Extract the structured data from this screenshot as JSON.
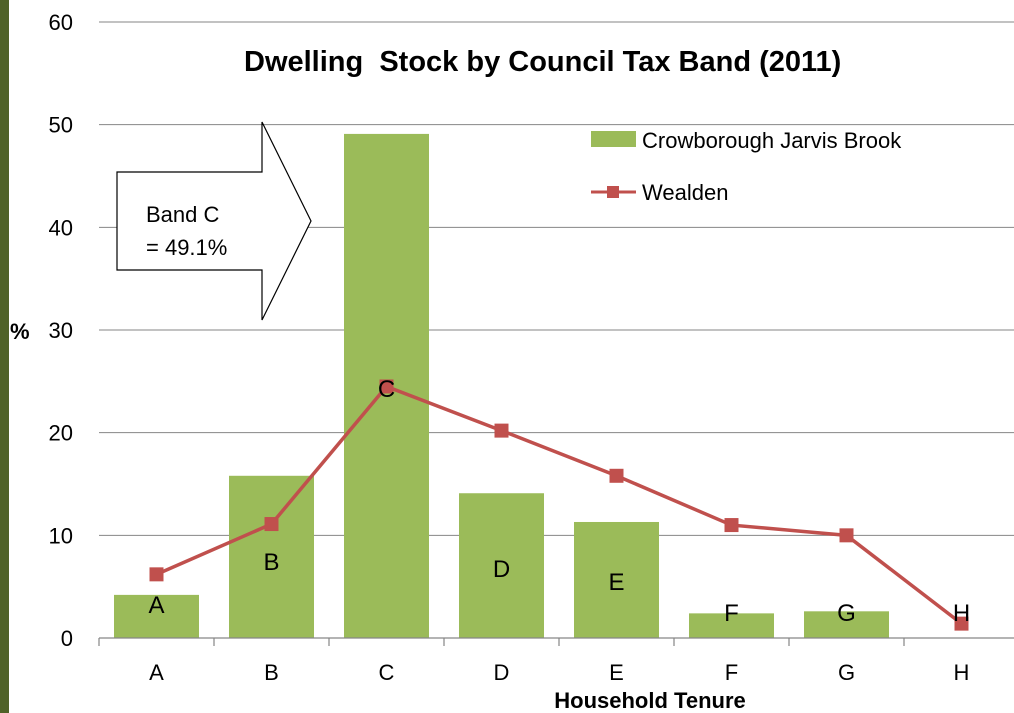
{
  "chart_data": {
    "type": "bar",
    "title": "Dwelling  Stock by Council Tax Band (2011)",
    "xlabel": "Household Tenure",
    "ylabel": "%",
    "ylim": [
      0,
      60
    ],
    "yticks": [
      "0",
      "10",
      "20",
      "30",
      "40",
      "50",
      "60"
    ],
    "categories": [
      "A",
      "B",
      "C",
      "D",
      "E",
      "F",
      "G",
      "H"
    ],
    "series": [
      {
        "name": "Crowborough Jarvis Brook",
        "type": "bar",
        "color": "#9bbb59",
        "values": [
          4.2,
          15.8,
          49.1,
          14.1,
          11.3,
          2.4,
          2.6,
          0
        ],
        "data_labels": [
          "A",
          "B",
          "C",
          "D",
          "E",
          "F",
          "G",
          "H"
        ]
      },
      {
        "name": "Wealden",
        "type": "line",
        "color": "#c0504d",
        "values": [
          6.2,
          11.1,
          24.5,
          20.2,
          15.8,
          11.0,
          10.0,
          1.4
        ]
      }
    ],
    "legend_position": "top-right",
    "grid": true,
    "annotation": {
      "line1": "Band C",
      "line2": "= 49.1%"
    }
  }
}
